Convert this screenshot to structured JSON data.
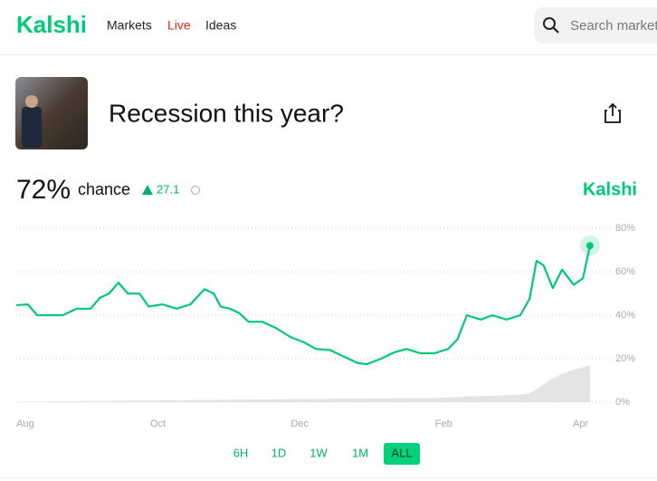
{
  "header": {
    "logo": "Kalshi",
    "nav": [
      "Markets",
      "Live",
      "Ideas"
    ],
    "search_placeholder": "Search markets"
  },
  "market": {
    "title": "Recession this year?",
    "chance": "72%",
    "chance_label": "chance",
    "change": "27.1",
    "brand": "Kalshi"
  },
  "chart_data": {
    "type": "line",
    "x": [
      0,
      5,
      9,
      14,
      20,
      26,
      32,
      36,
      40,
      44,
      48,
      53,
      57,
      63,
      69,
      75,
      81,
      85,
      88,
      92,
      96,
      100,
      106,
      112,
      118,
      124,
      129,
      135,
      141,
      147,
      151,
      157,
      163,
      168,
      174,
      180,
      186,
      190,
      194,
      200,
      205,
      211,
      217,
      221,
      224,
      227,
      231,
      235,
      240,
      244,
      247
    ],
    "series": [
      {
        "color": "#00c97a",
        "values": [
          44.6,
          45,
          40,
          40,
          40,
          43,
          43,
          48,
          50,
          55,
          50,
          50,
          44,
          45,
          43,
          45,
          52,
          50,
          44,
          43,
          41,
          37,
          37,
          34,
          30,
          27.5,
          24.5,
          24,
          21,
          18,
          17.5,
          20,
          23,
          24.5,
          22.5,
          22.5,
          24.5,
          29,
          40,
          38,
          40,
          38,
          40,
          47.5,
          65,
          63,
          52.5,
          61,
          54,
          57,
          72
        ]
      },
      {
        "color": "#e4e4e4",
        "fill": true,
        "values": [
          0,
          0.2,
          0.3,
          0.4,
          0.4,
          0.5,
          0.5,
          0.6,
          0.6,
          0.7,
          0.7,
          0.8,
          0.8,
          0.9,
          0.9,
          1,
          1,
          1,
          1.1,
          1.1,
          1.2,
          1.2,
          1.3,
          1.3,
          1.4,
          1.4,
          1.5,
          1.5,
          1.6,
          1.6,
          1.7,
          1.7,
          1.8,
          1.8,
          1.9,
          2,
          2.2,
          2.4,
          2.6,
          2.8,
          3,
          3.2,
          3.5,
          4,
          6,
          8,
          11,
          13,
          15,
          16,
          17
        ]
      }
    ],
    "xlim": [
      0,
      256
    ],
    "xticks": [
      {
        "value": 0,
        "label": "Aug"
      },
      {
        "value": 61,
        "label": "Oct"
      },
      {
        "value": 122,
        "label": "Dec"
      },
      {
        "value": 184,
        "label": "Feb"
      },
      {
        "value": 243,
        "label": "Apr"
      }
    ],
    "ylim": [
      0,
      80
    ],
    "yticks": [
      {
        "value": 0,
        "label": "0%"
      },
      {
        "value": 20,
        "label": "20%"
      },
      {
        "value": 40,
        "label": "40%"
      },
      {
        "value": 60,
        "label": "60%"
      },
      {
        "value": 80,
        "label": "80%"
      }
    ],
    "grid": true
  },
  "timeframes": {
    "options": [
      "6H",
      "1D",
      "1W",
      "1M",
      "ALL"
    ],
    "active": 4
  }
}
